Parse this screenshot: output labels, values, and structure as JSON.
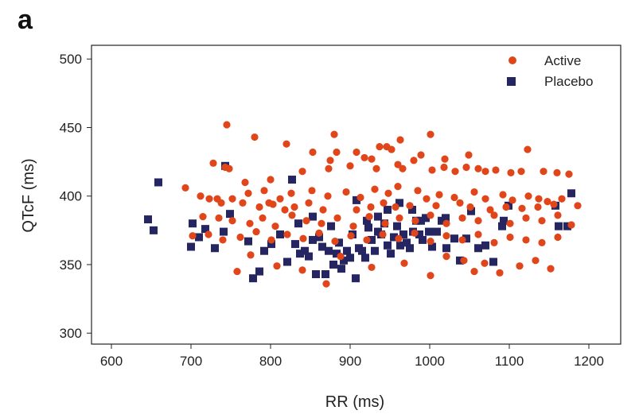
{
  "panel_label": "a",
  "colors": {
    "active": "#e0461a",
    "placebo": "#252562",
    "axis": "#222222"
  },
  "chart_data": {
    "type": "scatter",
    "xlabel": "RR (ms)",
    "ylabel": "QTcF (ms)",
    "xlim": [
      575,
      1240
    ],
    "ylim": [
      292,
      510
    ],
    "xticks": [
      600,
      700,
      800,
      900,
      1000,
      1100,
      1200
    ],
    "yticks": [
      300,
      350,
      400,
      450,
      500
    ],
    "legend_position": "top-right",
    "series": [
      {
        "name": "Active",
        "marker": "circle",
        "points": [
          [
            745,
            452
          ],
          [
            780,
            443
          ],
          [
            820,
            438
          ],
          [
            880,
            445
          ],
          [
            1001,
            445
          ],
          [
            963,
            441
          ],
          [
            937,
            436
          ],
          [
            946,
            436
          ],
          [
            952,
            434
          ],
          [
            1123,
            434
          ],
          [
            853,
            432
          ],
          [
            883,
            432
          ],
          [
            908,
            432
          ],
          [
            918,
            428
          ],
          [
            989,
            430
          ],
          [
            1019,
            427
          ],
          [
            1049,
            430
          ],
          [
            875,
            426
          ],
          [
            927,
            427
          ],
          [
            980,
            426
          ],
          [
            900,
            422
          ],
          [
            960,
            423
          ],
          [
            743,
            421
          ],
          [
            728,
            424
          ],
          [
            748,
            420
          ],
          [
            800,
            412
          ],
          [
            840,
            418
          ],
          [
            873,
            420
          ],
          [
            933,
            420
          ],
          [
            966,
            420
          ],
          [
            1003,
            419
          ],
          [
            1018,
            421
          ],
          [
            1032,
            418
          ],
          [
            1046,
            421
          ],
          [
            1061,
            420
          ],
          [
            1070,
            418
          ],
          [
            1083,
            419
          ],
          [
            1102,
            417
          ],
          [
            1115,
            418
          ],
          [
            1143,
            418
          ],
          [
            1160,
            417
          ],
          [
            1175,
            416
          ],
          [
            693,
            406
          ],
          [
            712,
            400
          ],
          [
            733,
            398
          ],
          [
            752,
            398
          ],
          [
            772,
            402
          ],
          [
            792,
            404
          ],
          [
            812,
            398
          ],
          [
            826,
            402
          ],
          [
            852,
            404
          ],
          [
            872,
            400
          ],
          [
            895,
            403
          ],
          [
            913,
            399
          ],
          [
            931,
            405
          ],
          [
            948,
            402
          ],
          [
            960,
            407
          ],
          [
            985,
            404
          ],
          [
            996,
            398
          ],
          [
            1012,
            401
          ],
          [
            1031,
            399
          ],
          [
            1056,
            403
          ],
          [
            1070,
            398
          ],
          [
            1092,
            401
          ],
          [
            1104,
            397
          ],
          [
            1124,
            400
          ],
          [
            1137,
            398
          ],
          [
            1148,
            396
          ],
          [
            1166,
            398
          ],
          [
            1186,
            393
          ],
          [
            715,
            385
          ],
          [
            735,
            384
          ],
          [
            752,
            382
          ],
          [
            774,
            380
          ],
          [
            790,
            384
          ],
          [
            806,
            378
          ],
          [
            827,
            386
          ],
          [
            845,
            382
          ],
          [
            864,
            380
          ],
          [
            884,
            384
          ],
          [
            904,
            378
          ],
          [
            924,
            385
          ],
          [
            944,
            380
          ],
          [
            962,
            384
          ],
          [
            982,
            382
          ],
          [
            1001,
            386
          ],
          [
            1021,
            380
          ],
          [
            1041,
            384
          ],
          [
            1061,
            382
          ],
          [
            1081,
            386
          ],
          [
            1101,
            380
          ],
          [
            1121,
            384
          ],
          [
            1141,
            382
          ],
          [
            1161,
            386
          ],
          [
            1178,
            379
          ],
          [
            702,
            371
          ],
          [
            722,
            372
          ],
          [
            740,
            368
          ],
          [
            762,
            370
          ],
          [
            782,
            374
          ],
          [
            801,
            368
          ],
          [
            821,
            372
          ],
          [
            841,
            369
          ],
          [
            861,
            373
          ],
          [
            881,
            367
          ],
          [
            901,
            371
          ],
          [
            921,
            368
          ],
          [
            941,
            372
          ],
          [
            961,
            369
          ],
          [
            981,
            373
          ],
          [
            1001,
            367
          ],
          [
            1021,
            371
          ],
          [
            1041,
            368
          ],
          [
            1061,
            372
          ],
          [
            1081,
            366
          ],
          [
            1101,
            370
          ],
          [
            1121,
            368
          ],
          [
            1141,
            366
          ],
          [
            1161,
            370
          ],
          [
            758,
            345
          ],
          [
            775,
            357
          ],
          [
            808,
            349
          ],
          [
            840,
            346
          ],
          [
            870,
            336
          ],
          [
            888,
            356
          ],
          [
            927,
            348
          ],
          [
            968,
            351
          ],
          [
            1001,
            342
          ],
          [
            1021,
            356
          ],
          [
            1043,
            353
          ],
          [
            1056,
            345
          ],
          [
            1069,
            351
          ],
          [
            1088,
            344
          ],
          [
            1113,
            349
          ],
          [
            1133,
            353
          ],
          [
            1152,
            347
          ],
          [
            768,
            410
          ],
          [
            798,
            395
          ],
          [
            818,
            390
          ],
          [
            848,
            395
          ],
          [
            866,
            390
          ],
          [
            908,
            390
          ],
          [
            926,
            392
          ],
          [
            942,
            395
          ],
          [
            957,
            392
          ],
          [
            975,
            393
          ],
          [
            1008,
            393
          ],
          [
            1038,
            395
          ],
          [
            1051,
            392
          ],
          [
            1076,
            390
          ],
          [
            1096,
            392
          ],
          [
            1116,
            391
          ],
          [
            1136,
            392
          ],
          [
            1156,
            394
          ],
          [
            723,
            398
          ],
          [
            738,
            395
          ],
          [
            765,
            395
          ],
          [
            786,
            392
          ],
          [
            803,
            394
          ],
          [
            830,
            392
          ]
        ]
      },
      {
        "name": "Placebo",
        "marker": "square",
        "points": [
          [
            659,
            410
          ],
          [
            646,
            383
          ],
          [
            653,
            375
          ],
          [
            702,
            380
          ],
          [
            700,
            363
          ],
          [
            710,
            370
          ],
          [
            718,
            376
          ],
          [
            730,
            362
          ],
          [
            741,
            374
          ],
          [
            743,
            422
          ],
          [
            749,
            387
          ],
          [
            772,
            367
          ],
          [
            778,
            340
          ],
          [
            786,
            345
          ],
          [
            792,
            360
          ],
          [
            801,
            365
          ],
          [
            812,
            372
          ],
          [
            821,
            352
          ],
          [
            827,
            412
          ],
          [
            831,
            365
          ],
          [
            837,
            358
          ],
          [
            843,
            360
          ],
          [
            848,
            356
          ],
          [
            853,
            368
          ],
          [
            857,
            343
          ],
          [
            861,
            370
          ],
          [
            865,
            363
          ],
          [
            869,
            343
          ],
          [
            873,
            360
          ],
          [
            876,
            378
          ],
          [
            879,
            350
          ],
          [
            883,
            358
          ],
          [
            886,
            366
          ],
          [
            889,
            347
          ],
          [
            892,
            353
          ],
          [
            896,
            360
          ],
          [
            900,
            355
          ],
          [
            903,
            372
          ],
          [
            907,
            340
          ],
          [
            911,
            362
          ],
          [
            915,
            360
          ],
          [
            919,
            355
          ],
          [
            923,
            377
          ],
          [
            927,
            368
          ],
          [
            931,
            360
          ],
          [
            935,
            374
          ],
          [
            939,
            372
          ],
          [
            943,
            380
          ],
          [
            947,
            364
          ],
          [
            951,
            358
          ],
          [
            955,
            370
          ],
          [
            959,
            378
          ],
          [
            963,
            364
          ],
          [
            967,
            372
          ],
          [
            971,
            366
          ],
          [
            975,
            362
          ],
          [
            979,
            374
          ],
          [
            983,
            382
          ],
          [
            987,
            372
          ],
          [
            991,
            368
          ],
          [
            995,
            384
          ],
          [
            999,
            374
          ],
          [
            1003,
            363
          ],
          [
            1009,
            374
          ],
          [
            1015,
            382
          ],
          [
            1021,
            362
          ],
          [
            1031,
            369
          ],
          [
            1038,
            353
          ],
          [
            1046,
            369
          ],
          [
            1052,
            389
          ],
          [
            1061,
            362
          ],
          [
            1070,
            364
          ],
          [
            1080,
            352
          ],
          [
            1091,
            378
          ],
          [
            1099,
            393
          ],
          [
            1093,
            382
          ],
          [
            1162,
            378
          ],
          [
            1173,
            378
          ],
          [
            1178,
            402
          ],
          [
            1158,
            393
          ],
          [
            908,
            397
          ],
          [
            921,
            382
          ],
          [
            935,
            385
          ],
          [
            947,
            390
          ],
          [
            962,
            395
          ],
          [
            978,
            390
          ],
          [
            989,
            382
          ],
          [
            1020,
            384
          ],
          [
            835,
            380
          ],
          [
            853,
            385
          ]
        ]
      }
    ]
  }
}
